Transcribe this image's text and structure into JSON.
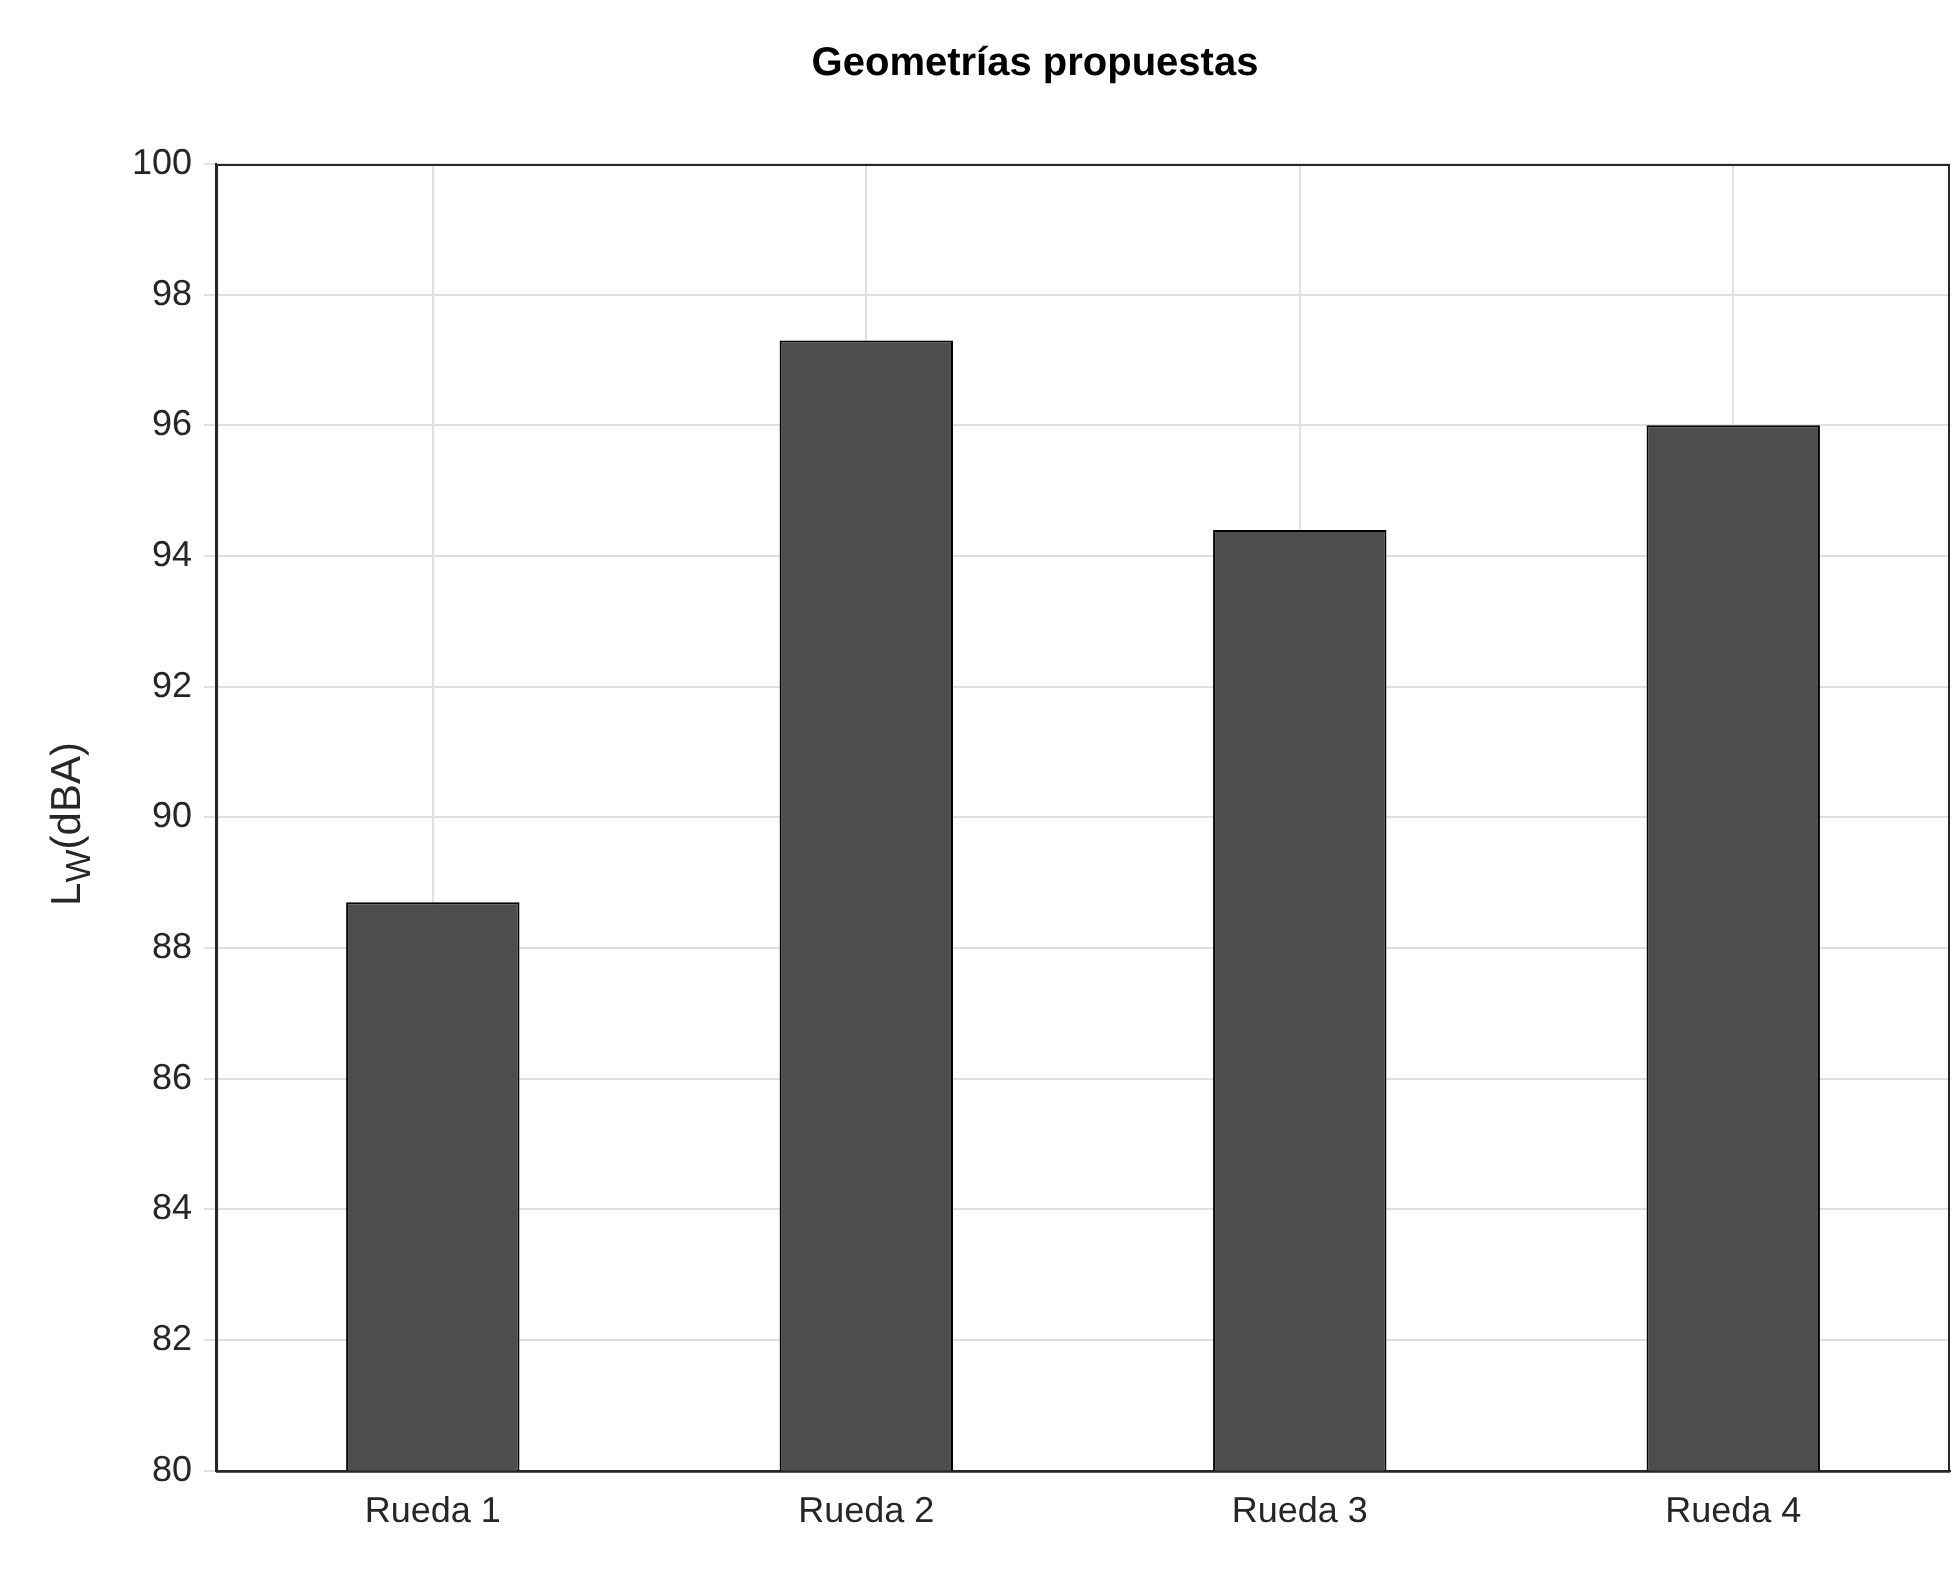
{
  "chart_data": {
    "type": "bar",
    "title": "Geometrías propuestas",
    "ylabel": "L$_{W}$(dBA)",
    "categories": [
      "Rueda 1",
      "Rueda 2",
      "Rueda 3",
      "Rueda 4"
    ],
    "values": [
      88.7,
      97.3,
      94.4,
      96.0
    ],
    "color": "#4d4d4d",
    "ylim": [
      80,
      100
    ],
    "yticks": [
      80,
      82,
      84,
      86,
      88,
      90,
      92,
      94,
      96,
      98,
      100
    ],
    "grid": true
  }
}
